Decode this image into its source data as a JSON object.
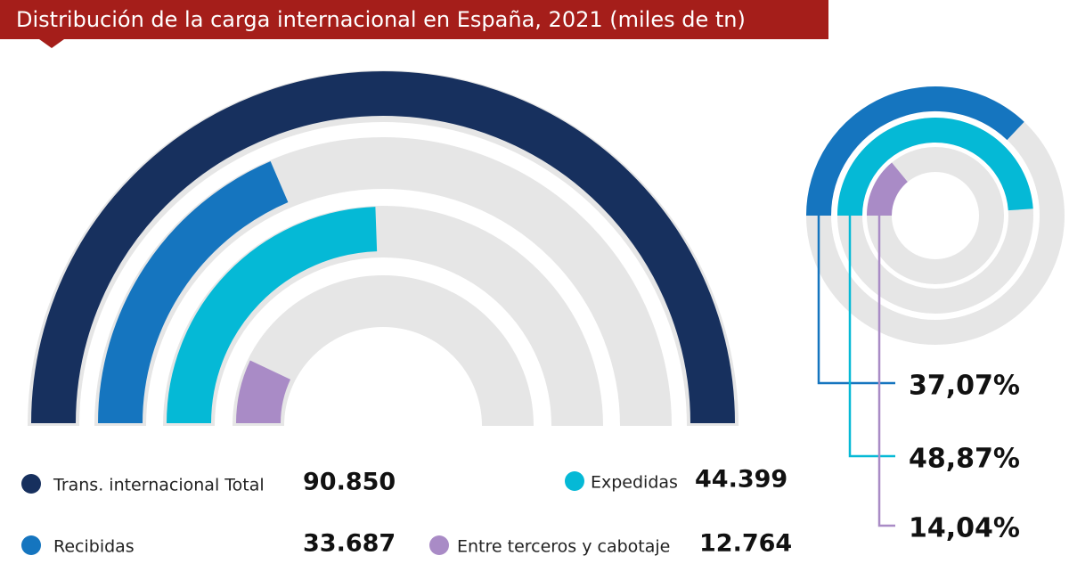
{
  "chart_data": [
    {
      "type": "semicircle_bar",
      "title": "Distribución de la carga internacional en España, 2021 (miles de tn)",
      "categories": [
        "Trans. internacional Total",
        "Recibidas",
        "Expedidas",
        "Entre terceros y cabotaje"
      ],
      "values": [
        90850,
        33687,
        44399,
        12764
      ],
      "value_labels": [
        "90.850",
        "33.687",
        "44.399",
        "12.764"
      ],
      "colors": [
        "#17305e",
        "#1575bf",
        "#05b9d6",
        "#a98bc6"
      ],
      "ylim": [
        0,
        90850
      ]
    },
    {
      "type": "ring_bar",
      "values": [
        37.07,
        48.87,
        14.04
      ],
      "value_labels": [
        "37,07%",
        "48,87%",
        "14,04%"
      ],
      "colors": [
        "#1575bf",
        "#05b9d6",
        "#a98bc6"
      ],
      "ylim": [
        0,
        100
      ]
    }
  ]
}
